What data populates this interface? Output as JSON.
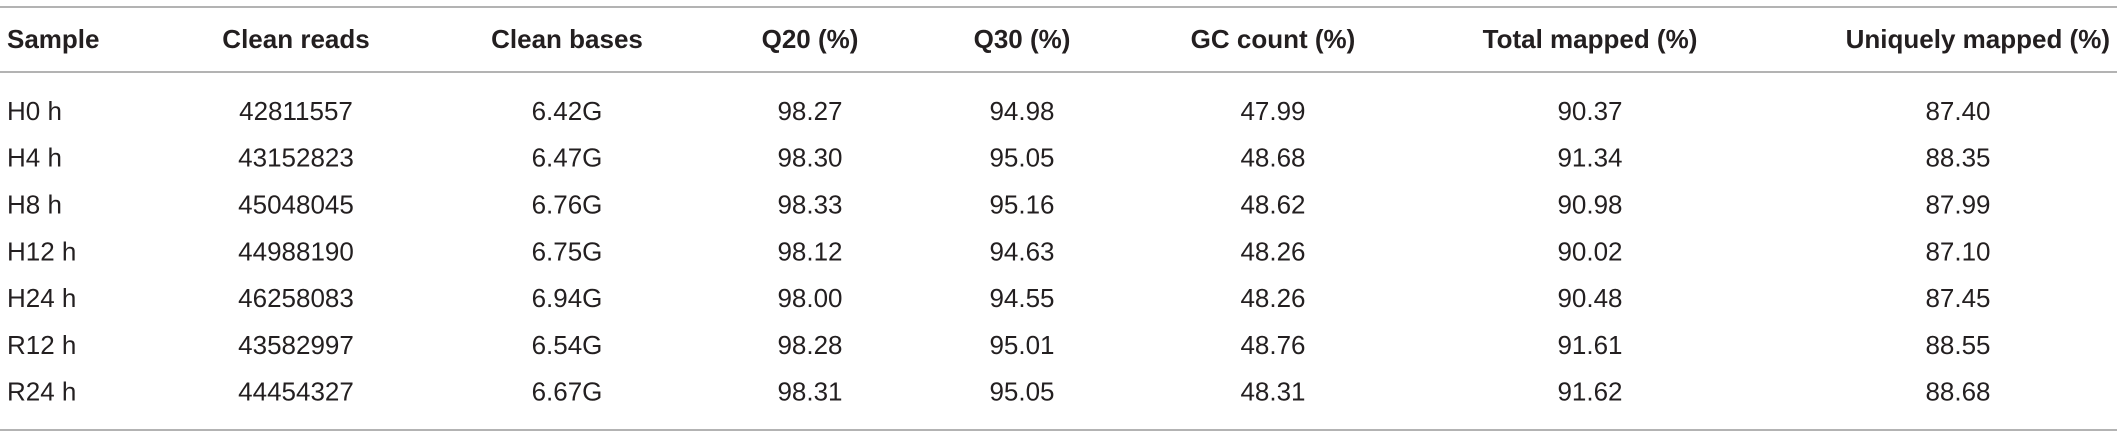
{
  "table": {
    "columns": [
      "Sample",
      "Clean reads",
      "Clean bases",
      "Q20 (%)",
      "Q30 (%)",
      "GC count (%)",
      "Total mapped (%)",
      "Uniquely mapped (%)"
    ],
    "rows": [
      [
        "H0 h",
        "42811557",
        "6.42G",
        "98.27",
        "94.98",
        "47.99",
        "90.37",
        "87.40"
      ],
      [
        "H4 h",
        "43152823",
        "6.47G",
        "98.30",
        "95.05",
        "48.68",
        "91.34",
        "88.35"
      ],
      [
        "H8 h",
        "45048045",
        "6.76G",
        "98.33",
        "95.16",
        "48.62",
        "90.98",
        "87.99"
      ],
      [
        "H12 h",
        "44988190",
        "6.75G",
        "98.12",
        "94.63",
        "48.26",
        "90.02",
        "87.10"
      ],
      [
        "H24 h",
        "46258083",
        "6.94G",
        "98.00",
        "94.55",
        "48.26",
        "90.48",
        "87.45"
      ],
      [
        "R12 h",
        "43582997",
        "6.54G",
        "98.28",
        "95.01",
        "48.76",
        "91.61",
        "88.55"
      ],
      [
        "R24 h",
        "44454327",
        "6.67G",
        "98.31",
        "95.05",
        "48.31",
        "91.62",
        "88.68"
      ]
    ]
  }
}
